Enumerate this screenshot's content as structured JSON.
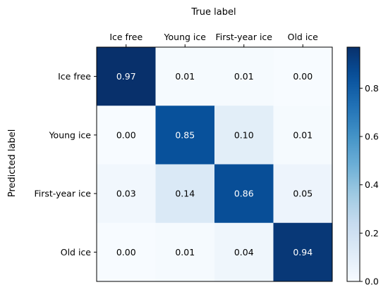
{
  "chart_data": {
    "type": "heatmap",
    "title": "",
    "xlabel": "True label",
    "ylabel": "Predicted label",
    "x_categories": [
      "Ice free",
      "Young ice",
      "First-year ice",
      "Old ice"
    ],
    "y_categories": [
      "Ice free",
      "Young ice",
      "First-year ice",
      "Old ice"
    ],
    "values": [
      [
        0.97,
        0.01,
        0.01,
        0.0
      ],
      [
        0.0,
        0.85,
        0.1,
        0.01
      ],
      [
        0.03,
        0.14,
        0.86,
        0.05
      ],
      [
        0.0,
        0.01,
        0.04,
        0.94
      ]
    ],
    "value_labels": [
      [
        "0.97",
        "0.01",
        "0.01",
        "0.00"
      ],
      [
        "0.00",
        "0.85",
        "0.10",
        "0.01"
      ],
      [
        "0.03",
        "0.14",
        "0.86",
        "0.05"
      ],
      [
        "0.00",
        "0.01",
        "0.04",
        "0.94"
      ]
    ],
    "colormap": "Blues",
    "color_range": [
      0,
      0.97
    ],
    "colorbar": {
      "ticks": [
        0.0,
        0.2,
        0.4,
        0.6,
        0.8
      ],
      "tick_labels": [
        "0.0",
        "0.2",
        "0.4",
        "0.6",
        "0.8"
      ]
    },
    "x_axis_position": "top",
    "grid": false
  }
}
